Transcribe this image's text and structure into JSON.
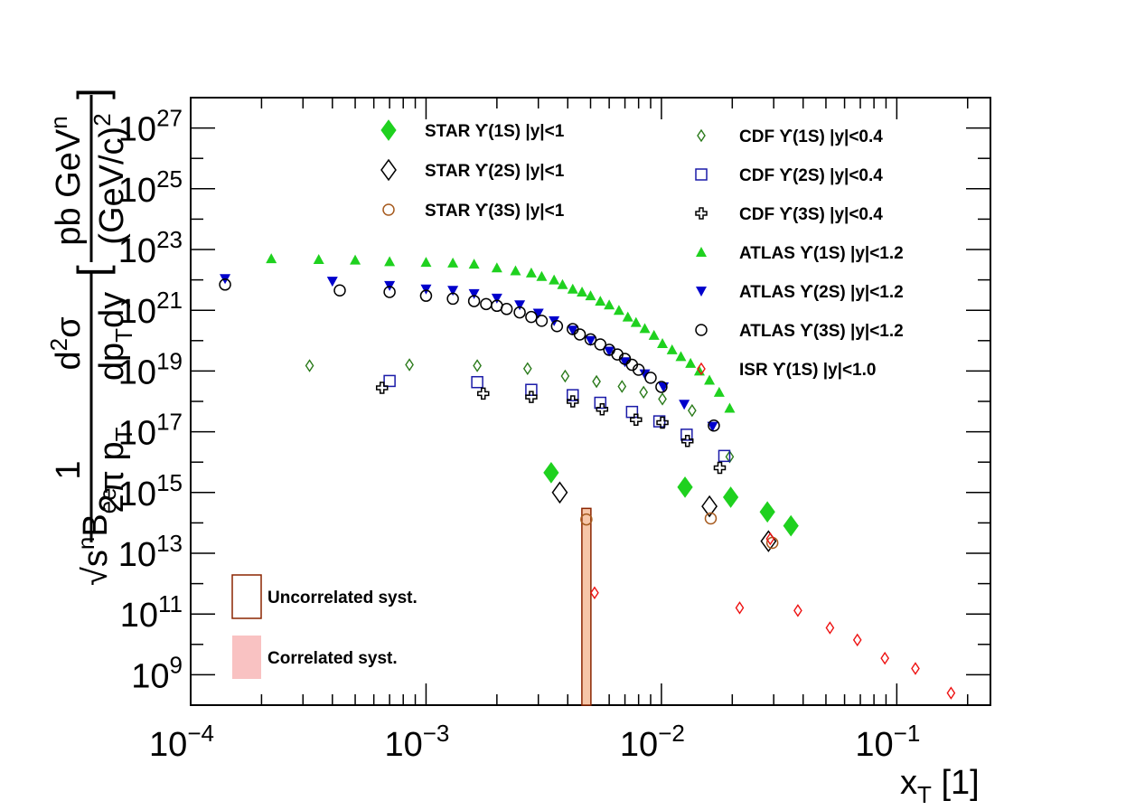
{
  "chart_data": {
    "type": "scatter",
    "xscale": "log",
    "yscale": "log",
    "xlim": [
      0.0001,
      0.25
    ],
    "ylim": [
      100000000.0,
      1e+28
    ],
    "xlabel": "x_T [1]",
    "ylabel": "√s^n B_ee (1/2π p_T) d²σ/(dp_T dy) [pb GeV^n/(GeV/c)²]",
    "x_ticks": [
      {
        "label": "10",
        "exp": "−4",
        "value": 0.0001
      },
      {
        "label": "10",
        "exp": "−3",
        "value": 0.001
      },
      {
        "label": "10",
        "exp": "−2",
        "value": 0.01
      },
      {
        "label": "10",
        "exp": "−1",
        "value": 0.1
      }
    ],
    "y_ticks": [
      {
        "label": "10",
        "exp": "9",
        "value": 1000000000.0
      },
      {
        "label": "10",
        "exp": "11",
        "value": 100000000000.0
      },
      {
        "label": "10",
        "exp": "13",
        "value": 10000000000000.0
      },
      {
        "label": "10",
        "exp": "15",
        "value": 1000000000000000.0
      },
      {
        "label": "10",
        "exp": "17",
        "value": 1e+17
      },
      {
        "label": "10",
        "exp": "19",
        "value": 1e+19
      },
      {
        "label": "10",
        "exp": "21",
        "value": 1e+21
      },
      {
        "label": "10",
        "exp": "23",
        "value": 1e+23
      },
      {
        "label": "10",
        "exp": "25",
        "value": 1e+25
      },
      {
        "label": "10",
        "exp": "27",
        "value": 1e+27
      }
    ],
    "series": [
      {
        "name": "STAR ϒ(1S) |y|<1",
        "marker": "diamond-filled",
        "color": "#1fd11f",
        "points": [
          [
            0.0034,
            4500000000000000.0
          ],
          [
            0.0126,
            1500000000000000.0
          ],
          [
            0.0197,
            700000000000000.0
          ],
          [
            0.0282,
            230000000000000.0
          ],
          [
            0.0355,
            80000000000000.0
          ]
        ]
      },
      {
        "name": "STAR ϒ(2S) |y|<1",
        "marker": "diamond-open",
        "color": "#000000",
        "points": [
          [
            0.0037,
            1000000000000000.0
          ],
          [
            0.016,
            350000000000000.0
          ],
          [
            0.0285,
            25000000000000.0
          ]
        ]
      },
      {
        "name": "STAR ϒ(3S) |y|<1",
        "marker": "circle-open",
        "color": "#a65a1e",
        "points": [
          [
            0.0048,
            130000000000000.0
          ],
          [
            0.0162,
            140000000000000.0
          ],
          [
            0.0296,
            22000000000000.0
          ]
        ]
      },
      {
        "name": "CDF ϒ(1S) |y|<0.4",
        "marker": "diamond-small",
        "color": "#2a7a1a",
        "points": [
          [
            0.00032,
            1.5e+19
          ],
          [
            0.00085,
            1.6e+19
          ],
          [
            0.00165,
            1.5e+19
          ],
          [
            0.0027,
            1.2e+19
          ],
          [
            0.0039,
            6.8e+18
          ],
          [
            0.0053,
            4.5e+18
          ],
          [
            0.0068,
            3.1e+18
          ],
          [
            0.0084,
            2e+18
          ],
          [
            0.0101,
            1.2e+18
          ],
          [
            0.0135,
            5e+17
          ],
          [
            0.0195,
            1.5e+16
          ]
        ]
      },
      {
        "name": "CDF ϒ(2S) |y|<0.4",
        "marker": "square-open",
        "color": "#1a1aa8",
        "points": [
          [
            0.0007,
            4.7e+18
          ],
          [
            0.00165,
            4.3e+18
          ],
          [
            0.0028,
            2.4e+18
          ],
          [
            0.0042,
            1.6e+18
          ],
          [
            0.0055,
            9e+17
          ],
          [
            0.0075,
            4.5e+17
          ],
          [
            0.0098,
            2.2e+17
          ],
          [
            0.0128,
            8e+16
          ],
          [
            0.0185,
            1.6e+16
          ]
        ]
      },
      {
        "name": "CDF ϒ(3S) |y|<0.4",
        "marker": "cross-open",
        "color": "#000000",
        "points": [
          [
            0.00065,
            2.8e+18
          ],
          [
            0.00175,
            1.8e+18
          ],
          [
            0.0028,
            1.4e+18
          ],
          [
            0.0042,
            1e+18
          ],
          [
            0.0056,
            5.5e+17
          ],
          [
            0.0078,
            2.5e+17
          ],
          [
            0.0101,
            2e+17
          ],
          [
            0.0129,
            5e+16
          ],
          [
            0.0177,
            6500000000000000.0
          ]
        ]
      },
      {
        "name": "ATLAS ϒ(1S) |y|<1.2",
        "marker": "triangle-up",
        "color": "#1fd11f",
        "points": [
          [
            0.00022,
            5e+22
          ],
          [
            0.00035,
            4.7e+22
          ],
          [
            0.0005,
            4.5e+22
          ],
          [
            0.0007,
            4e+22
          ],
          [
            0.001,
            3.8e+22
          ],
          [
            0.0013,
            3.6e+22
          ],
          [
            0.0016,
            3.3e+22
          ],
          [
            0.002,
            2.5e+22
          ],
          [
            0.0024,
            2e+22
          ],
          [
            0.0028,
            1.7e+22
          ],
          [
            0.0031,
            1.3e+22
          ],
          [
            0.0035,
            1e+22
          ],
          [
            0.0038,
            7e+21
          ],
          [
            0.0042,
            5e+21
          ],
          [
            0.0046,
            4e+21
          ],
          [
            0.005,
            3e+21
          ],
          [
            0.0055,
            2e+21
          ],
          [
            0.006,
            1.5e+21
          ],
          [
            0.0066,
            1e+21
          ],
          [
            0.0072,
            6e+20
          ],
          [
            0.0078,
            4e+20
          ],
          [
            0.0085,
            2.5e+20
          ],
          [
            0.0093,
            1.5e+20
          ],
          [
            0.0101,
            8e+19
          ],
          [
            0.0111,
            5e+19
          ],
          [
            0.0121,
            3e+19
          ],
          [
            0.0133,
            1.8e+19
          ],
          [
            0.0145,
            1e+19
          ],
          [
            0.016,
            5e+18
          ],
          [
            0.0176,
            2e+18
          ],
          [
            0.0195,
            6e+17
          ]
        ]
      },
      {
        "name": "ATLAS ϒ(2S) |y|<1.2",
        "marker": "triangle-down",
        "color": "#0000cc",
        "points": [
          [
            0.00014,
            1.1e+22
          ],
          [
            0.0004,
            9e+21
          ],
          [
            0.0007,
            6.5e+21
          ],
          [
            0.001,
            5e+21
          ],
          [
            0.0013,
            4.5e+21
          ],
          [
            0.0016,
            3.5e+21
          ],
          [
            0.002,
            2.5e+21
          ],
          [
            0.0025,
            1.5e+21
          ],
          [
            0.003,
            8e+20
          ],
          [
            0.0035,
            4.5e+20
          ],
          [
            0.0042,
            2.2e+20
          ],
          [
            0.005,
            1e+20
          ],
          [
            0.006,
            4.5e+19
          ],
          [
            0.007,
            2e+19
          ],
          [
            0.0085,
            8e+18
          ],
          [
            0.0102,
            3e+18
          ],
          [
            0.0125,
            8e+17
          ],
          [
            0.0165,
            1.5e+17
          ]
        ]
      },
      {
        "name": "ATLAS ϒ(3S) |y|<1.2",
        "marker": "circle-open",
        "color": "#000000",
        "points": [
          [
            0.00014,
            7e+21
          ],
          [
            0.00043,
            4.5e+21
          ],
          [
            0.0007,
            4e+21
          ],
          [
            0.001,
            3e+21
          ],
          [
            0.0013,
            2.4e+21
          ],
          [
            0.0016,
            2e+21
          ],
          [
            0.0018,
            1.6e+21
          ],
          [
            0.002,
            1.4e+21
          ],
          [
            0.0022,
            1.1e+21
          ],
          [
            0.0025,
            8.5e+20
          ],
          [
            0.0028,
            6e+20
          ],
          [
            0.0031,
            4.5e+20
          ],
          [
            0.0036,
            3e+20
          ],
          [
            0.0042,
            2.4e+20
          ],
          [
            0.0045,
            1.6e+20
          ],
          [
            0.005,
            1.1e+20
          ],
          [
            0.0055,
            7.5e+19
          ],
          [
            0.006,
            5e+19
          ],
          [
            0.0065,
            3.5e+19
          ],
          [
            0.007,
            2.5e+19
          ],
          [
            0.0075,
            1.6e+19
          ],
          [
            0.008,
            1.1e+19
          ],
          [
            0.009,
            6e+18
          ],
          [
            0.01,
            3e+18
          ],
          [
            0.0167,
            1.6e+17
          ]
        ]
      },
      {
        "name": "ISR ϒ(1S) |y|<1.0",
        "marker": "diamond-small",
        "color": "#ee1111",
        "points": [
          [
            0.0052,
            500000000000.0
          ],
          [
            0.0215,
            160000000000.0
          ],
          [
            0.029,
            30000000000000.0
          ],
          [
            0.038,
            130000000000.0
          ],
          [
            0.052,
            35000000000.0
          ],
          [
            0.068,
            14000000000.0
          ],
          [
            0.089,
            3500000000.0
          ],
          [
            0.12,
            1600000000.0
          ],
          [
            0.17,
            250000000.0
          ]
        ]
      }
    ],
    "systematics": [
      {
        "type": "uncorrelated",
        "x": 0.0048,
        "y_low": 100000000.0,
        "y_high": 300000000000000.0,
        "color": "#8b2500"
      }
    ],
    "annotations": [
      "Uncorrelated syst.",
      "Correlated syst."
    ]
  },
  "legend": {
    "col1": [
      {
        "marker": "diamond-filled",
        "color": "#1fd11f",
        "label": "STAR ϒ(1S) |y|<1"
      },
      {
        "marker": "diamond-open",
        "color": "#000000",
        "label": "STAR ϒ(2S) |y|<1"
      },
      {
        "marker": "circle-open",
        "color": "#a65a1e",
        "label": "STAR ϒ(3S) |y|<1"
      }
    ],
    "col2": [
      {
        "marker": "diamond-small",
        "color": "#2a7a1a",
        "label": "CDF ϒ(1S) |y|<0.4"
      },
      {
        "marker": "square-open",
        "color": "#1a1aa8",
        "label": "CDF ϒ(2S) |y|<0.4"
      },
      {
        "marker": "cross-open",
        "color": "#000000",
        "label": "CDF ϒ(3S) |y|<0.4"
      },
      {
        "marker": "triangle-up",
        "color": "#1fd11f",
        "label": "ATLAS ϒ(1S) |y|<1.2"
      },
      {
        "marker": "triangle-down",
        "color": "#0000cc",
        "label": "ATLAS ϒ(2S) |y|<1.2"
      },
      {
        "marker": "circle-open",
        "color": "#000000",
        "label": "ATLAS ϒ(3S) |y|<1.2"
      },
      {
        "marker": "diamond-small",
        "color": "#ee1111",
        "label": "ISR ϒ(1S) |y|<1.0"
      }
    ],
    "syst_uncorrelated": "Uncorrelated syst.",
    "syst_correlated": "Correlated syst."
  },
  "labels": {
    "x_main": "x",
    "x_sub": "T",
    "x_unit": " [1]"
  }
}
